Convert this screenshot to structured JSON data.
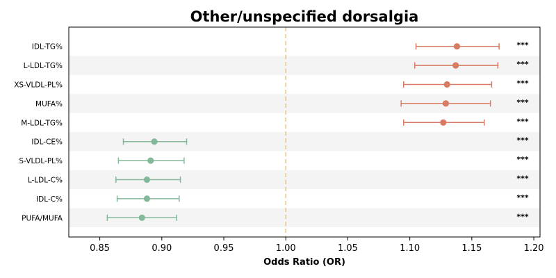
{
  "chart_data": {
    "type": "forest",
    "title": "Other/unspecified dorsalgia",
    "xlabel": "Odds Ratio (OR)",
    "ylabel": "",
    "xlim": [
      0.825,
      1.205
    ],
    "xticks": [
      0.85,
      0.9,
      0.95,
      1.0,
      1.05,
      1.1,
      1.15,
      1.2
    ],
    "xtick_labels": [
      "0.85",
      "0.90",
      "0.95",
      "1.00",
      "1.05",
      "1.10",
      "1.15",
      "1.20"
    ],
    "reference_line": 1.0,
    "grid": false,
    "colors": {
      "positive": "#d97a62",
      "negative": "#84b89a",
      "reference": "#f2c46d",
      "band": "#f4f4f4"
    },
    "rows": [
      {
        "label": "IDL-TG%",
        "or": 1.138,
        "lower": 1.105,
        "upper": 1.172,
        "sig": "***"
      },
      {
        "label": "L-LDL-TG%",
        "or": 1.137,
        "lower": 1.104,
        "upper": 1.171,
        "sig": "***"
      },
      {
        "label": "XS-VLDL-PL%",
        "or": 1.13,
        "lower": 1.095,
        "upper": 1.166,
        "sig": "***"
      },
      {
        "label": "MUFA%",
        "or": 1.129,
        "lower": 1.093,
        "upper": 1.165,
        "sig": "***"
      },
      {
        "label": "M-LDL-TG%",
        "or": 1.127,
        "lower": 1.095,
        "upper": 1.16,
        "sig": "***"
      },
      {
        "label": "IDL-CE%",
        "or": 0.894,
        "lower": 0.869,
        "upper": 0.92,
        "sig": "***"
      },
      {
        "label": "S-VLDL-PL%",
        "or": 0.891,
        "lower": 0.865,
        "upper": 0.918,
        "sig": "***"
      },
      {
        "label": "L-LDL-C%",
        "or": 0.888,
        "lower": 0.863,
        "upper": 0.915,
        "sig": "***"
      },
      {
        "label": "IDL-C%",
        "or": 0.888,
        "lower": 0.864,
        "upper": 0.914,
        "sig": "***"
      },
      {
        "label": "PUFA/MUFA",
        "or": 0.884,
        "lower": 0.856,
        "upper": 0.912,
        "sig": "***"
      }
    ]
  }
}
